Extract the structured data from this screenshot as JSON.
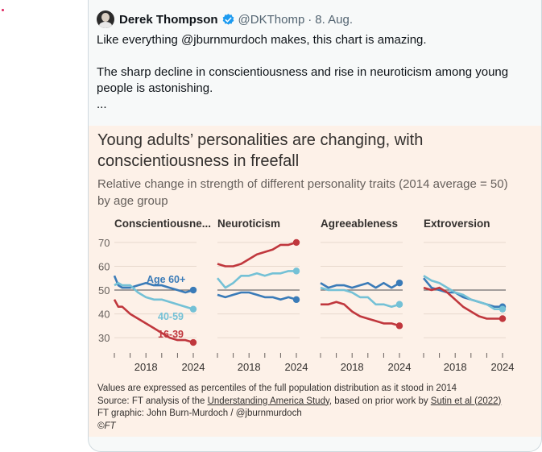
{
  "tweet": {
    "author_name": "Derek Thompson",
    "handle": "@DKThomp",
    "separator": "·",
    "date": "8. Aug.",
    "line1": "Like everything @jburnmurdoch makes, this chart is amazing.",
    "line2": "The sharp decline in conscientiousness and rise in neuroticism among young people is astonishing.",
    "line3": "..."
  },
  "figure": {
    "title_line1": "Young adults’ personalities are changing, with",
    "title_line2": "conscientiousness in freefall",
    "subtitle_line1": "Relative change in strength of different personality traits (2014 average = 50)",
    "subtitle_line2": "by age group",
    "footnote": "Values are expressed as percentiles of the full population distribution as it stood in 2014",
    "source_prefix": "Source: FT analysis of the ",
    "source_link1": "Understanding America Study",
    "source_mid": ", based on prior work by ",
    "source_link2": "Sutin et al (2022)",
    "credit": "FT graphic: John Burn-Murdoch / @jburnmurdoch",
    "copyright": "©FT"
  },
  "colors": {
    "age60": "#3a7bb8",
    "age40": "#74c1d6",
    "age16": "#c0373d",
    "baseline": "#6e6e6e",
    "panel_bg": "#fdf1e8"
  },
  "chart_data": {
    "type": "line",
    "yticks": [
      70,
      60,
      50,
      40,
      30
    ],
    "ylim": [
      27,
      72
    ],
    "xticklabels": [
      "2018",
      "2024"
    ],
    "xlim": [
      2014,
      2024
    ],
    "baseline": 50,
    "series_labels": [
      "Age 60+",
      "40-59",
      "16-39"
    ],
    "panels": [
      {
        "title": "Conscientiousne...",
        "series": [
          {
            "name": "Age 60+",
            "color": "age60",
            "x": [
              2014,
              2014.5,
              2015,
              2016,
              2017,
              2018,
              2019,
              2020,
              2021,
              2022,
              2023,
              2024
            ],
            "y": [
              56,
              52,
              51,
              51,
              52,
              53,
              52,
              52,
              51,
              50,
              49,
              50
            ]
          },
          {
            "name": "40-59",
            "color": "age40",
            "x": [
              2014,
              2014.5,
              2015,
              2016,
              2017,
              2018,
              2019,
              2020,
              2021,
              2022,
              2023,
              2024
            ],
            "y": [
              52,
              53,
              52,
              52,
              49,
              47,
              46,
              46,
              45,
              44,
              43,
              42
            ]
          },
          {
            "name": "16-39",
            "color": "age16",
            "x": [
              2014,
              2014.5,
              2015,
              2016,
              2017,
              2018,
              2019,
              2020,
              2021,
              2022,
              2023,
              2024
            ],
            "y": [
              46,
              43,
              43,
              40,
              38,
              36,
              34,
              32,
              30,
              29,
              29,
              28
            ]
          }
        ]
      },
      {
        "title": "Neuroticism",
        "series": [
          {
            "name": "Age 60+",
            "color": "age60",
            "x": [
              2014,
              2015,
              2016,
              2017,
              2018,
              2019,
              2020,
              2021,
              2022,
              2023,
              2024
            ],
            "y": [
              48,
              47,
              48,
              49,
              49,
              48,
              47,
              47,
              46,
              47,
              46
            ]
          },
          {
            "name": "40-59",
            "color": "age40",
            "x": [
              2014,
              2015,
              2016,
              2017,
              2018,
              2019,
              2020,
              2021,
              2022,
              2023,
              2024
            ],
            "y": [
              55,
              51,
              53,
              56,
              56,
              57,
              56,
              57,
              57,
              58,
              58
            ]
          },
          {
            "name": "16-39",
            "color": "age16",
            "x": [
              2014,
              2015,
              2016,
              2017,
              2018,
              2019,
              2020,
              2021,
              2022,
              2023,
              2024
            ],
            "y": [
              61,
              60,
              60,
              61,
              63,
              65,
              66,
              67,
              69,
              69,
              70
            ]
          }
        ]
      },
      {
        "title": "Agreeableness",
        "series": [
          {
            "name": "Age 60+",
            "color": "age60",
            "x": [
              2014,
              2015,
              2016,
              2017,
              2018,
              2019,
              2020,
              2021,
              2022,
              2023,
              2024
            ],
            "y": [
              53,
              51,
              52,
              52,
              51,
              52,
              53,
              51,
              53,
              51,
              53
            ]
          },
          {
            "name": "40-59",
            "color": "age40",
            "x": [
              2014,
              2015,
              2016,
              2017,
              2018,
              2019,
              2020,
              2021,
              2022,
              2023,
              2024
            ],
            "y": [
              51,
              50,
              50,
              50,
              49,
              47,
              47,
              44,
              44,
              43,
              44
            ]
          },
          {
            "name": "16-39",
            "color": "age16",
            "x": [
              2014,
              2015,
              2016,
              2017,
              2018,
              2019,
              2020,
              2021,
              2022,
              2023,
              2024
            ],
            "y": [
              44,
              44,
              45,
              44,
              41,
              39,
              38,
              37,
              36,
              36,
              35
            ]
          }
        ]
      },
      {
        "title": "Extroversion",
        "series": [
          {
            "name": "Age 60+",
            "color": "age60",
            "x": [
              2014,
              2015,
              2016,
              2017,
              2018,
              2019,
              2020,
              2021,
              2022,
              2023,
              2024
            ],
            "y": [
              55,
              51,
              50,
              49,
              49,
              47,
              46,
              45,
              44,
              43,
              43
            ]
          },
          {
            "name": "40-59",
            "color": "age40",
            "x": [
              2014,
              2015,
              2016,
              2017,
              2018,
              2019,
              2020,
              2021,
              2022,
              2023,
              2024
            ],
            "y": [
              56,
              54,
              53,
              51,
              49,
              48,
              46,
              45,
              44,
              42,
              42
            ]
          },
          {
            "name": "16-39",
            "color": "age16",
            "x": [
              2014,
              2015,
              2016,
              2017,
              2018,
              2019,
              2020,
              2021,
              2022,
              2023,
              2024
            ],
            "y": [
              51,
              50,
              51,
              49,
              46,
              43,
              41,
              39,
              38,
              38,
              38
            ]
          }
        ]
      }
    ]
  }
}
